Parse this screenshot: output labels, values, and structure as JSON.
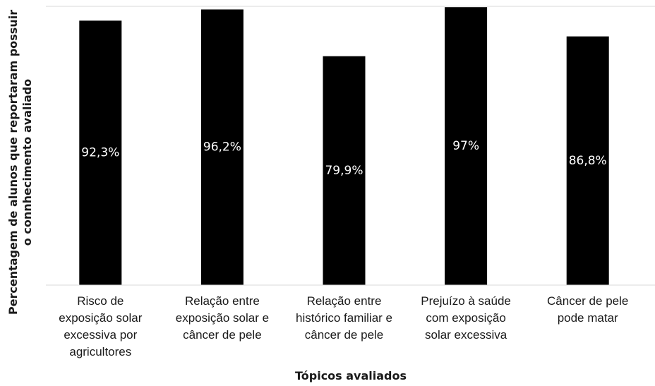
{
  "chart_data": {
    "type": "bar",
    "categories": [
      [
        "Risco de",
        "exposição solar",
        "excessiva por",
        "agricultores"
      ],
      [
        "Relação entre",
        "exposição solar e",
        "câncer de pele"
      ],
      [
        "Relação entre",
        "histórico familiar e",
        "câncer de pele"
      ],
      [
        "Prejuízo à saúde",
        "com exposição",
        "solar excessiva"
      ],
      [
        "Câncer de pele",
        "pode matar"
      ]
    ],
    "values": [
      92.3,
      96.2,
      79.9,
      97,
      86.8
    ],
    "data_labels": [
      "92,3%",
      "96,2%",
      "79,9%",
      "97%",
      "86,8%"
    ],
    "xlabel": "Tópicos avaliados",
    "ylabel": [
      "Percentagem de alunos que reportaram possuir",
      "o connhecimento avaliado"
    ],
    "ylim": [
      0,
      100
    ],
    "grid": false,
    "bar_color": "#000000",
    "label_color": "#ffffff"
  }
}
